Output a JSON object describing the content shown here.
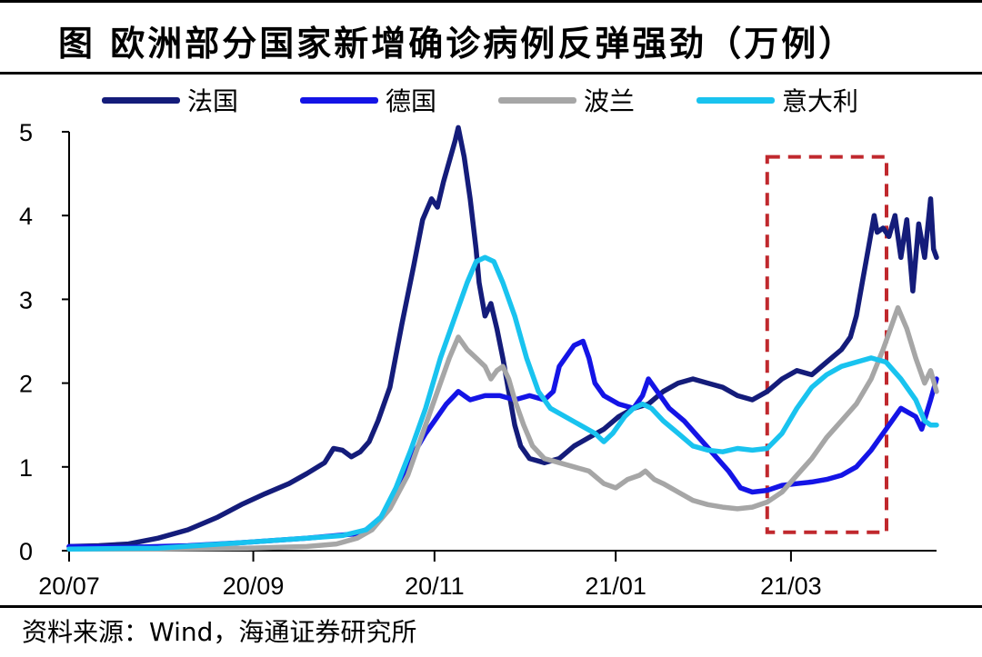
{
  "title": "图  欧洲部分国家新增确诊病例反弹强劲（万例）",
  "source": "资料来源：Wind，海通证券研究所",
  "colors": {
    "france": "#141c7a",
    "germany": "#1414e6",
    "poland": "#a6a6a6",
    "italy": "#19c3ef",
    "highlight_box": "#c0282d"
  },
  "chart_data": {
    "type": "line",
    "title": "图  欧洲部分国家新增确诊病例反弹强劲（万例）",
    "xlabel": "",
    "ylabel": "",
    "x_ticks": [
      "20/07",
      "20/09",
      "20/11",
      "21/01",
      "21/03"
    ],
    "x_tick_days": [
      0,
      62,
      123,
      184,
      243
    ],
    "x_range_days": [
      0,
      292
    ],
    "ylim": [
      0,
      5
    ],
    "y_ticks": [
      0,
      1,
      2,
      3,
      4,
      5
    ],
    "grid": false,
    "legend_position": "top",
    "highlight_box": {
      "x_days": [
        235,
        295
      ],
      "y": [
        0.22,
        4.7
      ]
    },
    "series": [
      {
        "name": "法国",
        "color": "#141c7a",
        "points": [
          [
            0,
            0.05
          ],
          [
            10,
            0.06
          ],
          [
            20,
            0.08
          ],
          [
            30,
            0.15
          ],
          [
            40,
            0.25
          ],
          [
            50,
            0.4
          ],
          [
            58,
            0.55
          ],
          [
            66,
            0.68
          ],
          [
            74,
            0.8
          ],
          [
            80,
            0.92
          ],
          [
            86,
            1.05
          ],
          [
            89,
            1.22
          ],
          [
            92,
            1.2
          ],
          [
            95,
            1.12
          ],
          [
            98,
            1.18
          ],
          [
            101,
            1.3
          ],
          [
            104,
            1.55
          ],
          [
            108,
            1.95
          ],
          [
            112,
            2.7
          ],
          [
            116,
            3.4
          ],
          [
            119,
            3.95
          ],
          [
            122,
            4.2
          ],
          [
            124,
            4.1
          ],
          [
            126,
            4.4
          ],
          [
            130,
            4.9
          ],
          [
            131,
            5.05
          ],
          [
            133,
            4.7
          ],
          [
            135,
            4.2
          ],
          [
            137,
            3.6
          ],
          [
            138,
            3.2
          ],
          [
            140,
            2.8
          ],
          [
            142,
            2.95
          ],
          [
            144,
            2.65
          ],
          [
            146,
            2.3
          ],
          [
            148,
            1.9
          ],
          [
            150,
            1.5
          ],
          [
            152,
            1.25
          ],
          [
            155,
            1.1
          ],
          [
            160,
            1.05
          ],
          [
            165,
            1.1
          ],
          [
            170,
            1.25
          ],
          [
            175,
            1.35
          ],
          [
            180,
            1.45
          ],
          [
            185,
            1.6
          ],
          [
            190,
            1.7
          ],
          [
            195,
            1.75
          ],
          [
            200,
            1.9
          ],
          [
            205,
            2.0
          ],
          [
            210,
            2.05
          ],
          [
            215,
            2.0
          ],
          [
            220,
            1.95
          ],
          [
            225,
            1.85
          ],
          [
            230,
            1.8
          ],
          [
            235,
            1.9
          ],
          [
            240,
            2.05
          ],
          [
            245,
            2.15
          ],
          [
            250,
            2.1
          ],
          [
            255,
            2.25
          ],
          [
            260,
            2.4
          ],
          [
            263,
            2.55
          ],
          [
            265,
            2.8
          ],
          [
            267,
            3.2
          ],
          [
            269,
            3.6
          ],
          [
            271,
            4.0
          ],
          [
            272,
            3.8
          ],
          [
            274,
            3.85
          ],
          [
            276,
            3.75
          ],
          [
            278,
            4.0
          ],
          [
            280,
            3.5
          ],
          [
            282,
            3.95
          ],
          [
            284,
            3.1
          ],
          [
            286,
            3.9
          ],
          [
            288,
            3.5
          ],
          [
            290,
            4.2
          ],
          [
            291,
            3.6
          ],
          [
            292,
            3.5
          ]
        ]
      },
      {
        "name": "德国",
        "color": "#1414e6",
        "points": [
          [
            0,
            0.05
          ],
          [
            20,
            0.04
          ],
          [
            40,
            0.06
          ],
          [
            60,
            0.1
          ],
          [
            80,
            0.15
          ],
          [
            96,
            0.2
          ],
          [
            100,
            0.25
          ],
          [
            105,
            0.4
          ],
          [
            110,
            0.7
          ],
          [
            115,
            1.1
          ],
          [
            120,
            1.4
          ],
          [
            123,
            1.55
          ],
          [
            127,
            1.75
          ],
          [
            131,
            1.9
          ],
          [
            135,
            1.8
          ],
          [
            140,
            1.85
          ],
          [
            145,
            1.85
          ],
          [
            150,
            1.8
          ],
          [
            155,
            1.85
          ],
          [
            160,
            1.8
          ],
          [
            163,
            1.9
          ],
          [
            165,
            2.2
          ],
          [
            170,
            2.45
          ],
          [
            173,
            2.5
          ],
          [
            175,
            2.3
          ],
          [
            177,
            2.0
          ],
          [
            180,
            1.85
          ],
          [
            185,
            1.75
          ],
          [
            190,
            1.7
          ],
          [
            193,
            1.85
          ],
          [
            195,
            2.05
          ],
          [
            198,
            1.9
          ],
          [
            202,
            1.7
          ],
          [
            207,
            1.55
          ],
          [
            212,
            1.35
          ],
          [
            217,
            1.15
          ],
          [
            222,
            0.95
          ],
          [
            226,
            0.75
          ],
          [
            230,
            0.7
          ],
          [
            235,
            0.72
          ],
          [
            240,
            0.78
          ],
          [
            245,
            0.8
          ],
          [
            250,
            0.82
          ],
          [
            255,
            0.85
          ],
          [
            260,
            0.9
          ],
          [
            265,
            1.0
          ],
          [
            270,
            1.2
          ],
          [
            275,
            1.45
          ],
          [
            280,
            1.7
          ],
          [
            285,
            1.6
          ],
          [
            287,
            1.45
          ],
          [
            290,
            1.8
          ],
          [
            292,
            2.05
          ]
        ]
      },
      {
        "name": "波兰",
        "color": "#a6a6a6",
        "points": [
          [
            0,
            0.02
          ],
          [
            30,
            0.02
          ],
          [
            60,
            0.03
          ],
          [
            80,
            0.05
          ],
          [
            90,
            0.08
          ],
          [
            97,
            0.15
          ],
          [
            102,
            0.25
          ],
          [
            108,
            0.5
          ],
          [
            114,
            0.9
          ],
          [
            119,
            1.4
          ],
          [
            124,
            1.9
          ],
          [
            128,
            2.3
          ],
          [
            131,
            2.55
          ],
          [
            134,
            2.4
          ],
          [
            137,
            2.3
          ],
          [
            140,
            2.2
          ],
          [
            142,
            2.05
          ],
          [
            144,
            2.15
          ],
          [
            146,
            2.2
          ],
          [
            148,
            2.05
          ],
          [
            150,
            1.8
          ],
          [
            153,
            1.5
          ],
          [
            156,
            1.25
          ],
          [
            160,
            1.1
          ],
          [
            165,
            1.05
          ],
          [
            170,
            1.0
          ],
          [
            175,
            0.95
          ],
          [
            180,
            0.8
          ],
          [
            184,
            0.75
          ],
          [
            188,
            0.85
          ],
          [
            192,
            0.9
          ],
          [
            194,
            0.95
          ],
          [
            197,
            0.85
          ],
          [
            200,
            0.8
          ],
          [
            205,
            0.7
          ],
          [
            210,
            0.6
          ],
          [
            215,
            0.55
          ],
          [
            220,
            0.52
          ],
          [
            225,
            0.5
          ],
          [
            230,
            0.52
          ],
          [
            235,
            0.58
          ],
          [
            240,
            0.7
          ],
          [
            245,
            0.9
          ],
          [
            250,
            1.1
          ],
          [
            255,
            1.35
          ],
          [
            260,
            1.55
          ],
          [
            265,
            1.75
          ],
          [
            270,
            2.05
          ],
          [
            274,
            2.4
          ],
          [
            277,
            2.7
          ],
          [
            279,
            2.9
          ],
          [
            282,
            2.65
          ],
          [
            285,
            2.3
          ],
          [
            288,
            2.0
          ],
          [
            290,
            2.15
          ],
          [
            292,
            1.9
          ]
        ]
      },
      {
        "name": "意大利",
        "color": "#19c3ef",
        "points": [
          [
            0,
            0.02
          ],
          [
            30,
            0.03
          ],
          [
            60,
            0.1
          ],
          [
            80,
            0.15
          ],
          [
            92,
            0.18
          ],
          [
            100,
            0.25
          ],
          [
            105,
            0.4
          ],
          [
            110,
            0.75
          ],
          [
            115,
            1.2
          ],
          [
            120,
            1.7
          ],
          [
            125,
            2.3
          ],
          [
            130,
            2.8
          ],
          [
            134,
            3.2
          ],
          [
            137,
            3.45
          ],
          [
            140,
            3.5
          ],
          [
            143,
            3.45
          ],
          [
            146,
            3.2
          ],
          [
            150,
            2.8
          ],
          [
            154,
            2.3
          ],
          [
            158,
            1.9
          ],
          [
            162,
            1.7
          ],
          [
            167,
            1.6
          ],
          [
            172,
            1.5
          ],
          [
            177,
            1.4
          ],
          [
            180,
            1.3
          ],
          [
            183,
            1.4
          ],
          [
            187,
            1.6
          ],
          [
            190,
            1.7
          ],
          [
            193,
            1.75
          ],
          [
            196,
            1.7
          ],
          [
            200,
            1.55
          ],
          [
            205,
            1.4
          ],
          [
            210,
            1.25
          ],
          [
            215,
            1.2
          ],
          [
            220,
            1.18
          ],
          [
            225,
            1.22
          ],
          [
            230,
            1.2
          ],
          [
            235,
            1.22
          ],
          [
            240,
            1.4
          ],
          [
            245,
            1.7
          ],
          [
            250,
            1.95
          ],
          [
            255,
            2.1
          ],
          [
            260,
            2.2
          ],
          [
            265,
            2.25
          ],
          [
            270,
            2.3
          ],
          [
            275,
            2.25
          ],
          [
            280,
            2.05
          ],
          [
            285,
            1.8
          ],
          [
            288,
            1.55
          ],
          [
            290,
            1.5
          ],
          [
            292,
            1.5
          ]
        ]
      }
    ]
  }
}
